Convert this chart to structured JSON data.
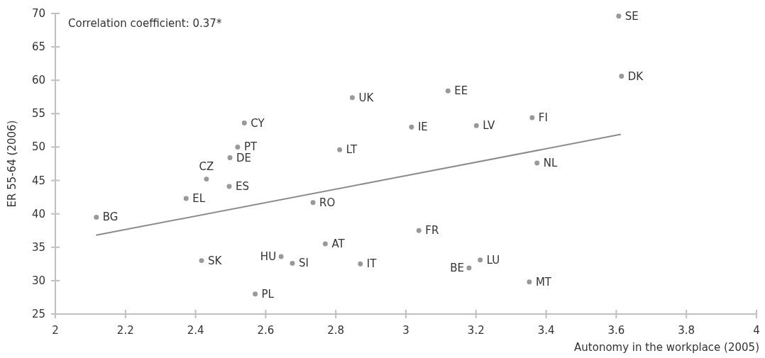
{
  "chart_data": {
    "type": "scatter",
    "xlabel": "Autonomy in the workplace (2005)",
    "ylabel": "ER 55-64 (2006)",
    "annotations": [
      "Correlation coefficient: 0.37*"
    ],
    "xlim": [
      2,
      4
    ],
    "xticks": [
      2,
      2.2,
      2.4,
      2.6,
      2.8,
      3,
      3.2,
      3.4,
      3.6,
      3.8,
      4
    ],
    "ylim": [
      25,
      70
    ],
    "yticks": [
      25,
      30,
      35,
      40,
      45,
      50,
      55,
      60,
      65,
      70
    ],
    "grid": false,
    "series": [
      {
        "marker": "circle",
        "color": "#999999",
        "x": [
          3.607,
          3.615,
          3.12,
          3.016,
          3.201,
          3.36,
          3.374,
          2.847,
          2.539,
          2.52,
          2.498,
          2.811,
          2.431,
          2.496,
          2.373,
          2.117,
          2.735,
          2.77,
          2.417,
          2.644,
          2.676,
          2.87,
          2.57,
          3.037,
          3.212,
          3.18,
          3.352
        ],
        "values": [
          69.6,
          60.6,
          58.4,
          53.0,
          53.2,
          54.4,
          47.6,
          57.4,
          53.6,
          50.0,
          48.4,
          49.6,
          45.2,
          44.1,
          42.3,
          39.5,
          41.7,
          35.5,
          33.0,
          33.6,
          32.6,
          32.5,
          28.0,
          37.5,
          33.1,
          31.9,
          29.8
        ],
        "value_labels": [
          "SE",
          "DK",
          "EE",
          "IE",
          "LV",
          "FI",
          "NL",
          "UK",
          "CY",
          "PT",
          "DE",
          "LT",
          "CZ",
          "ES",
          "EL",
          "BG",
          "RO",
          "AT",
          "SK",
          "HU",
          "SI",
          "IT",
          "PL",
          "FR",
          "LU",
          "BE",
          "MT"
        ]
      },
      {
        "type": "line",
        "color": "#8c8c8c",
        "x": [
          2.116,
          3.613
        ],
        "values": [
          36.8,
          51.9
        ]
      }
    ]
  }
}
